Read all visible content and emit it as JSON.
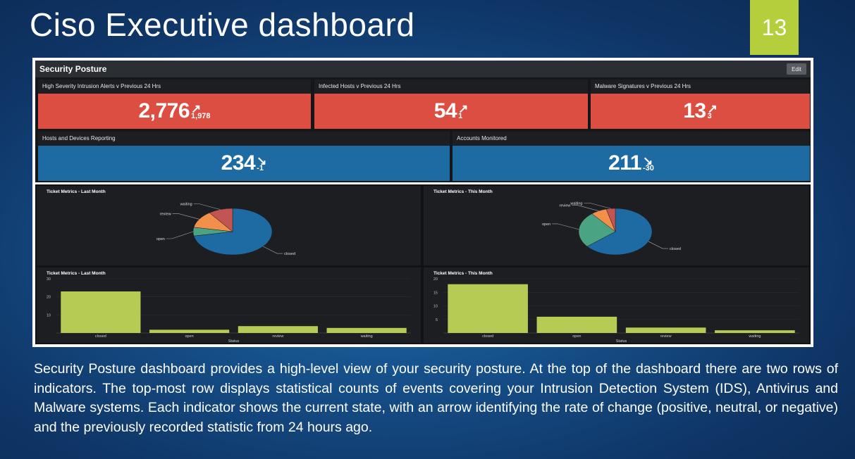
{
  "slide": {
    "title": "Ciso Executive dashboard",
    "number": "13",
    "caption": "Security Posture dashboard provides a high-level view of your security posture. At the top of the dashboard there are two rows of indicators. The top-most row displays statistical counts of events covering your Intrusion Detection System (IDS), Antivirus and Malware systems. Each indicator shows the current state, with an arrow identifying the rate of change (positive, neutral, or negative) and the previously recorded statistic from 24 hours ago."
  },
  "dashboard": {
    "title": "Security Posture",
    "edit_label": "Edit",
    "kpis_row1": [
      {
        "label": "High Severity Intrusion Alerts v Previous 24 Hrs",
        "value": "2,776",
        "arrow": "↗",
        "delta": "1,978",
        "color": "#dc4e41"
      },
      {
        "label": "Infected Hosts v Previous 24 Hrs",
        "value": "54",
        "arrow": "↗",
        "delta": "1",
        "color": "#dc4e41"
      },
      {
        "label": "Malware Signatures v Previous 24 Hrs",
        "value": "13",
        "arrow": "↗",
        "delta": "3",
        "color": "#dc4e41"
      }
    ],
    "kpis_row2": [
      {
        "label": "Hosts and Devices Reporting",
        "value": "234",
        "arrow": "↘",
        "delta": "-1",
        "color": "#1e6aa3"
      },
      {
        "label": "Accounts Monitored",
        "value": "211",
        "arrow": "↘",
        "delta": "-30",
        "color": "#1e6aa3"
      }
    ]
  },
  "chart_data": [
    {
      "type": "pie",
      "title": "Ticket Metrics - Last Month",
      "categories": [
        "closed",
        "open",
        "review",
        "waiting"
      ],
      "values": [
        72,
        6,
        12,
        10
      ],
      "colors": [
        "#1e6aa3",
        "#4aa382",
        "#f1904a",
        "#c25552"
      ]
    },
    {
      "type": "pie",
      "title": "Ticket Metrics - This Month",
      "categories": [
        "closed",
        "open",
        "review",
        "waiting"
      ],
      "values": [
        64,
        25,
        7,
        4
      ],
      "colors": [
        "#1e6aa3",
        "#4aa382",
        "#f1904a",
        "#c25552"
      ]
    },
    {
      "type": "bar",
      "title": "Ticket Metrics - Last Month",
      "categories": [
        "closed",
        "open",
        "review",
        "waiting"
      ],
      "values": [
        23,
        1.8,
        3.8,
        2.8
      ],
      "xlabel": "Status",
      "ylim": [
        0,
        30
      ],
      "yticks": [
        10,
        20,
        30
      ],
      "color": "#b5cb53"
    },
    {
      "type": "bar",
      "title": "Ticket Metrics - This Month",
      "categories": [
        "closed",
        "open",
        "review",
        "waiting"
      ],
      "values": [
        18,
        6,
        2,
        1
      ],
      "xlabel": "Status",
      "ylim": [
        0,
        20
      ],
      "yticks": [
        5,
        10,
        15,
        20
      ],
      "color": "#b5cb53"
    }
  ]
}
